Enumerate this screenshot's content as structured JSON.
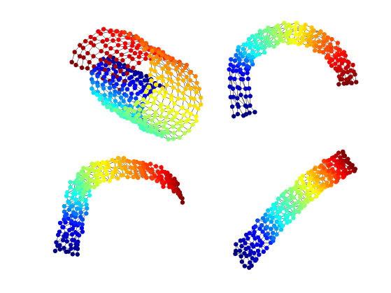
{
  "figure": {
    "background": "#ffffff",
    "edge_color": "#000000",
    "colormap": "jet",
    "colormap_stops": [
      "#00007f",
      "#0000ff",
      "#00ffff",
      "#7fff7f",
      "#ffff00",
      "#ff7f00",
      "#ff0000",
      "#7f0000"
    ],
    "panels": [
      {
        "id": "swiss-roll-graph",
        "shape": "rolled-sheet"
      },
      {
        "id": "embedding-graph-1",
        "shape": "arc-band"
      },
      {
        "id": "embedding-graph-2",
        "shape": "hook-band"
      },
      {
        "id": "embedding-graph-3",
        "shape": "diagonal-band"
      }
    ]
  }
}
